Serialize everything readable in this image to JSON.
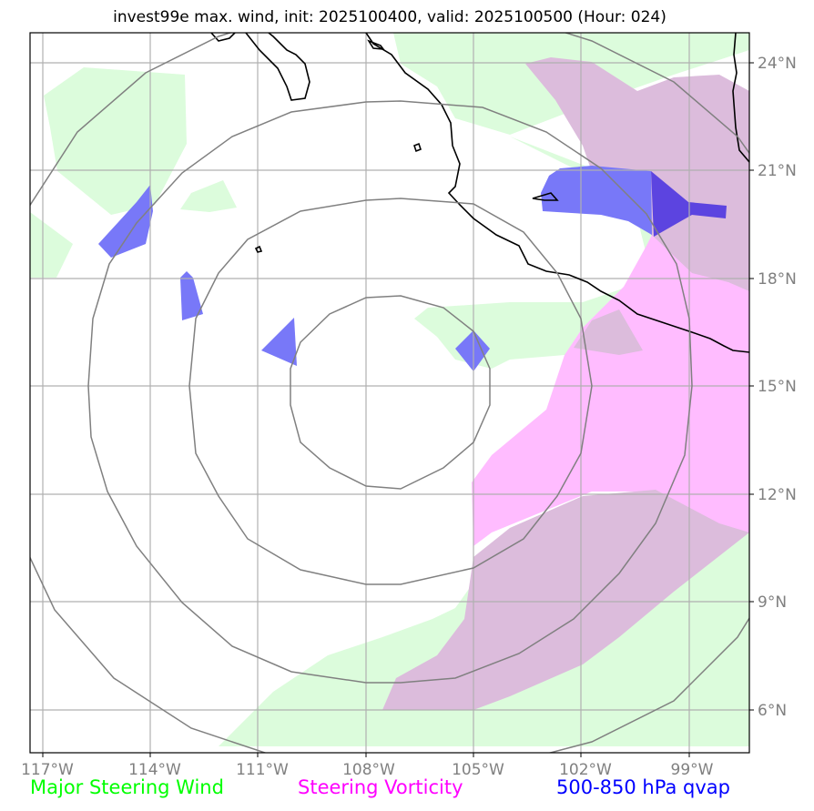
{
  "title": "invest99e max. wind, init: 2025100400, valid: 2025100500 (Hour: 024)",
  "map": {
    "lon_ticks": [
      "117°W",
      "114°W",
      "111°W",
      "108°W",
      "105°W",
      "102°W",
      "99°W"
    ],
    "lat_ticks": [
      "24°N",
      "21°N",
      "18°N",
      "15°N",
      "12°N",
      "9°N",
      "6°N"
    ],
    "center": {
      "lon": -107.1,
      "lat": 15.0
    },
    "range_rings": 4
  },
  "legend": [
    {
      "label": "Major Steering Wind",
      "color": "#00ff00"
    },
    {
      "label": "Steering Vorticity",
      "color": "#ff00ff"
    },
    {
      "label": "500-850 hPa qvap",
      "color": "#0000ff"
    }
  ],
  "colors": {
    "steering_wind_fill": "#dcfcdc",
    "vorticity_fill": "#ffbcff",
    "overlap_fill": "#dcbcdc",
    "qvap_fill": "#7878f8",
    "qvap_dark": "#5c44e0",
    "grid": "#b0b0b0",
    "rings": "#808080",
    "coast": "#000000"
  }
}
